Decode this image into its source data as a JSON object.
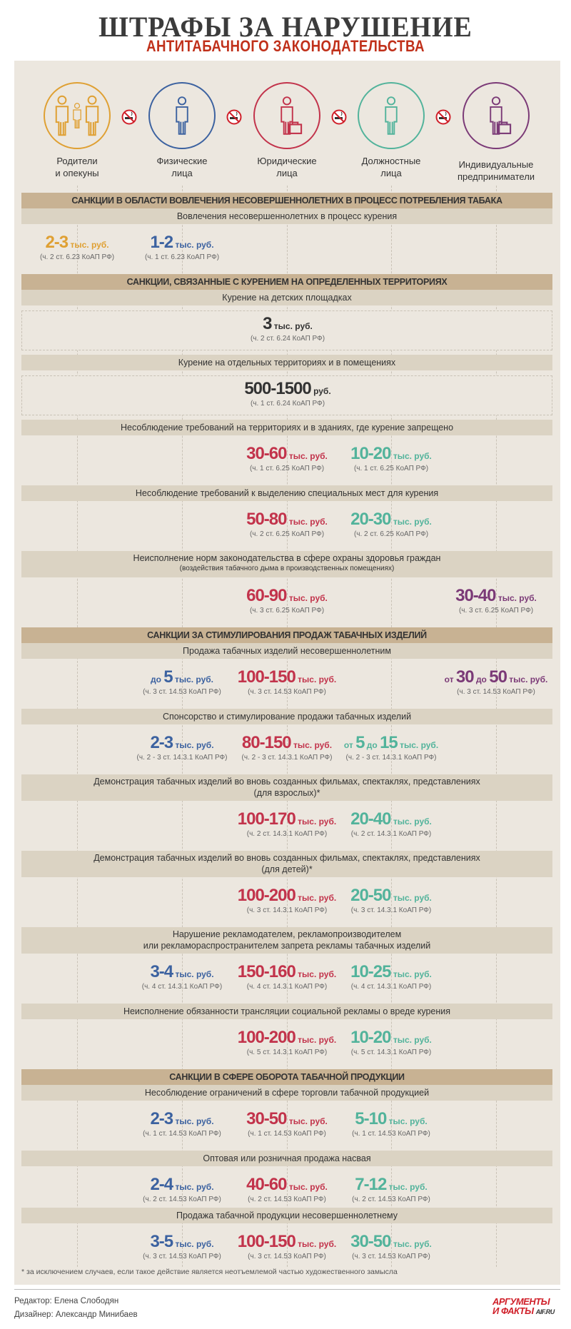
{
  "header": {
    "title": "ШТРАФЫ ЗА НАРУШЕНИЕ",
    "subtitle": "АНТИТАБАЧНОГО ЗАКОНОДАТЕЛЬСТВА"
  },
  "colors": {
    "col0": "#dfa033",
    "col1": "#3c62a0",
    "col2": "#c2334b",
    "col3": "#52b39b",
    "col4": "#7b3a77",
    "neutral": "#333333",
    "section_bar": "#c8b293",
    "sub_bar": "#dbd3c3",
    "panel": "#ece7df",
    "title_red": "#c0301a"
  },
  "categories": [
    {
      "icon": "family-icon",
      "line1": "Родители",
      "line2": "и опекуны"
    },
    {
      "icon": "person-icon",
      "line1": "Физические",
      "line2": "лица"
    },
    {
      "icon": "businessman-briefcase-icon",
      "line1": "Юридические",
      "line2": "лица"
    },
    {
      "icon": "official-icon",
      "line1": "Должностные",
      "line2": "лица"
    },
    {
      "icon": "entrepreneur-briefcase-icon",
      "line1": "Индивидуальные",
      "line2": "предприниматели"
    }
  ],
  "rows": [
    {
      "type": "sec",
      "text": "САНКЦИИ В ОБЛАСТИ ВОВЛЕЧЕНИЯ НЕСОВЕРШЕННОЛЕТНИХ В ПРОЦЕСС ПОТРЕБЛЕНИЯ ТАБАКА"
    },
    {
      "type": "sub",
      "text": "Вовлечения несовершеннолетних в процесс курения"
    },
    {
      "type": "fines",
      "fines": [
        {
          "col": 0,
          "parts": [
            {
              "t": "2-3",
              "b": true
            },
            {
              "t": " тыс. руб."
            }
          ],
          "cite": "(ч. 2 ст. 6.23 КоАП РФ)"
        },
        {
          "col": 1,
          "parts": [
            {
              "t": "1-2",
              "b": true
            },
            {
              "t": " тыс. руб."
            }
          ],
          "cite": "(ч. 1 ст. 6.23 КоАП РФ)"
        }
      ]
    },
    {
      "type": "sec",
      "text": "САНКЦИИ, СВЯЗАННЫЕ С КУРЕНИЕМ НА ОПРЕДЕЛЕННЫХ ТЕРРИТОРИЯХ"
    },
    {
      "type": "sub",
      "text": "Курение на детских площадках"
    },
    {
      "type": "box",
      "fines": [
        {
          "col": "all",
          "parts": [
            {
              "t": "3",
              "b": true
            },
            {
              "t": " тыс. руб."
            }
          ],
          "cite": "(ч. 2 ст. 6.24 КоАП РФ)"
        }
      ]
    },
    {
      "type": "sub",
      "text": "Курение на отдельных территориях и в помещениях"
    },
    {
      "type": "box",
      "fines": [
        {
          "col": "all",
          "parts": [
            {
              "t": "500-1500",
              "b": true
            },
            {
              "t": " руб."
            }
          ],
          "cite": "(ч. 1 ст. 6.24 КоАП РФ)"
        }
      ]
    },
    {
      "type": "sub",
      "text": "Несоблюдение требований на территориях и в зданиях, где курение запрещено"
    },
    {
      "type": "fines",
      "fines": [
        {
          "col": 2,
          "parts": [
            {
              "t": "30-60",
              "b": true
            },
            {
              "t": " тыс. руб."
            }
          ],
          "cite": "(ч. 1 ст. 6.25 КоАП РФ)"
        },
        {
          "col": 3,
          "parts": [
            {
              "t": "10-20",
              "b": true
            },
            {
              "t": " тыс. руб."
            }
          ],
          "cite": "(ч. 1 ст. 6.25 КоАП РФ)"
        }
      ]
    },
    {
      "type": "sub",
      "text": "Несоблюдение требований к выделению специальных мест для курения"
    },
    {
      "type": "fines",
      "fines": [
        {
          "col": 2,
          "parts": [
            {
              "t": "50-80",
              "b": true
            },
            {
              "t": " тыс. руб."
            }
          ],
          "cite": "(ч. 2 ст. 6.25 КоАП РФ)"
        },
        {
          "col": 3,
          "parts": [
            {
              "t": "20-30",
              "b": true
            },
            {
              "t": " тыс. руб."
            }
          ],
          "cite": "(ч. 2 ст. 6.25 КоАП РФ)"
        }
      ]
    },
    {
      "type": "sub2",
      "text": "Неисполнение норм законодательства в сфере охраны здоровья граждан",
      "note": "(воздействия табачного дыма в производственных помещениях)"
    },
    {
      "type": "fines",
      "fines": [
        {
          "col": 2,
          "parts": [
            {
              "t": "60-90",
              "b": true
            },
            {
              "t": " тыс. руб."
            }
          ],
          "cite": "(ч. 3 ст. 6.25 КоАП РФ)"
        },
        {
          "col": 4,
          "parts": [
            {
              "t": "30-40",
              "b": true
            },
            {
              "t": " тыс. руб."
            }
          ],
          "cite": "(ч. 3 ст. 6.25 КоАП РФ)"
        }
      ]
    },
    {
      "type": "sec",
      "text": "САНКЦИИ ЗА СТИМУЛИРОВАНИЯ ПРОДАЖ ТАБАЧНЫХ ИЗДЕЛИЙ"
    },
    {
      "type": "sub",
      "text": "Продажа табачных изделий несовершеннолетним"
    },
    {
      "type": "fines",
      "fines": [
        {
          "col": 1,
          "parts": [
            {
              "t": "до "
            },
            {
              "t": "5",
              "b": true
            },
            {
              "t": " тыс. руб."
            }
          ],
          "cite": "(ч. 3 ст. 14.53 КоАП РФ)"
        },
        {
          "col": 2,
          "parts": [
            {
              "t": "100-150",
              "b": true
            },
            {
              "t": " тыс. руб."
            }
          ],
          "cite": "(ч. 3 ст. 14.53 КоАП РФ)"
        },
        {
          "col": 4,
          "parts": [
            {
              "t": "от "
            },
            {
              "t": "30",
              "b": true
            },
            {
              "t": " до "
            },
            {
              "t": "50",
              "b": true
            },
            {
              "t": " тыс. руб."
            }
          ],
          "cite": "(ч. 3 ст. 14.53 КоАП РФ)"
        }
      ]
    },
    {
      "type": "sub",
      "text": "Спонсорство и стимулирование продажи табачных изделий"
    },
    {
      "type": "fines",
      "fines": [
        {
          "col": 1,
          "parts": [
            {
              "t": "2-3",
              "b": true
            },
            {
              "t": " тыс. руб."
            }
          ],
          "cite": "(ч. 2 - 3 ст. 14.3.1 КоАП РФ)"
        },
        {
          "col": 2,
          "parts": [
            {
              "t": "80-150",
              "b": true
            },
            {
              "t": " тыс. руб."
            }
          ],
          "cite": "(ч. 2 - 3 ст. 14.3.1 КоАП РФ)"
        },
        {
          "col": 3,
          "parts": [
            {
              "t": "от "
            },
            {
              "t": "5",
              "b": true
            },
            {
              "t": " до "
            },
            {
              "t": "15",
              "b": true
            },
            {
              "t": " тыс. руб."
            }
          ],
          "cite": "(ч. 2 - 3 ст. 14.3.1 КоАП РФ)"
        }
      ]
    },
    {
      "type": "sub2",
      "text": "Демонстрация табачных изделий во вновь созданных фильмах, спектаклях, представлениях",
      "text2": "(для взрослых)*"
    },
    {
      "type": "fines",
      "fines": [
        {
          "col": 2,
          "parts": [
            {
              "t": "100-170",
              "b": true
            },
            {
              "t": " тыс. руб."
            }
          ],
          "cite": "(ч. 2 ст. 14.3.1 КоАП РФ)"
        },
        {
          "col": 3,
          "parts": [
            {
              "t": "20-40",
              "b": true
            },
            {
              "t": " тыс. руб."
            }
          ],
          "cite": "(ч. 2 ст. 14.3.1 КоАП РФ)"
        }
      ]
    },
    {
      "type": "sub2",
      "text": "Демонстрация табачных изделий во вновь созданных фильмах, спектаклях, представлениях",
      "text2": "(для детей)*"
    },
    {
      "type": "fines",
      "fines": [
        {
          "col": 2,
          "parts": [
            {
              "t": "100-200",
              "b": true
            },
            {
              "t": " тыс. руб."
            }
          ],
          "cite": "(ч. 3 ст. 14.3.1 КоАП РФ)"
        },
        {
          "col": 3,
          "parts": [
            {
              "t": "20-50",
              "b": true
            },
            {
              "t": " тыс. руб."
            }
          ],
          "cite": "(ч. 3 ст. 14.3.1 КоАП РФ)"
        }
      ]
    },
    {
      "type": "sub2",
      "text": "Нарушение рекламодателем, рекламопроизводителем",
      "text2": "или рекламораспространителем запрета рекламы табачных изделий"
    },
    {
      "type": "fines",
      "fines": [
        {
          "col": 1,
          "parts": [
            {
              "t": "3-4",
              "b": true
            },
            {
              "t": " тыс. руб."
            }
          ],
          "cite": "(ч. 4 ст. 14.3.1 КоАП РФ)"
        },
        {
          "col": 2,
          "parts": [
            {
              "t": "150-160",
              "b": true
            },
            {
              "t": " тыс. руб."
            }
          ],
          "cite": "(ч. 4 ст. 14.3.1 КоАП РФ)"
        },
        {
          "col": 3,
          "parts": [
            {
              "t": "10-25",
              "b": true
            },
            {
              "t": " тыс. руб."
            }
          ],
          "cite": "(ч. 4 ст. 14.3.1 КоАП РФ)"
        }
      ]
    },
    {
      "type": "sub",
      "text": "Неисполнение обязанности трансляции социальной рекламы о вреде курения"
    },
    {
      "type": "fines",
      "fines": [
        {
          "col": 2,
          "parts": [
            {
              "t": "100-200",
              "b": true
            },
            {
              "t": " тыс. руб."
            }
          ],
          "cite": "(ч. 5 ст. 14.3.1 КоАП РФ)"
        },
        {
          "col": 3,
          "parts": [
            {
              "t": "10-20",
              "b": true
            },
            {
              "t": " тыс. руб."
            }
          ],
          "cite": "(ч. 5 ст. 14.3.1 КоАП РФ)"
        }
      ]
    },
    {
      "type": "sec",
      "text": "САНКЦИИ В СФЕРЕ ОБОРОТА ТАБАЧНОЙ ПРОДУКЦИИ"
    },
    {
      "type": "sub",
      "text": "Несоблюдение ограничений в сфере торговли табачной продукцией"
    },
    {
      "type": "fines",
      "fines": [
        {
          "col": 1,
          "parts": [
            {
              "t": "2-3",
              "b": true
            },
            {
              "t": " тыс. руб."
            }
          ],
          "cite": "(ч. 1 ст. 14.53 КоАП РФ)"
        },
        {
          "col": 2,
          "parts": [
            {
              "t": "30-50",
              "b": true
            },
            {
              "t": " тыс. руб."
            }
          ],
          "cite": "(ч. 1 ст. 14.53 КоАП РФ)"
        },
        {
          "col": 3,
          "parts": [
            {
              "t": "5-10",
              "b": true
            },
            {
              "t": " тыс. руб."
            }
          ],
          "cite": "(ч. 1 ст. 14.53 КоАП РФ)"
        }
      ]
    },
    {
      "type": "sub",
      "text": "Оптовая или розничная продажа насвая"
    },
    {
      "type": "fines",
      "fines": [
        {
          "col": 1,
          "parts": [
            {
              "t": "2-4",
              "b": true
            },
            {
              "t": " тыс. руб."
            }
          ],
          "cite": "(ч. 2 ст. 14.53 КоАП РФ)"
        },
        {
          "col": 2,
          "parts": [
            {
              "t": "40-60",
              "b": true
            },
            {
              "t": " тыс. руб."
            }
          ],
          "cite": "(ч. 2 ст. 14.53 КоАП РФ)"
        },
        {
          "col": 3,
          "parts": [
            {
              "t": "7-12",
              "b": true
            },
            {
              "t": " тыс. руб."
            }
          ],
          "cite": "(ч. 2 ст. 14.53 КоАП РФ)"
        }
      ]
    },
    {
      "type": "sub",
      "text": "Продажа табачной продукции несовершеннолетнему"
    },
    {
      "type": "fines",
      "fines": [
        {
          "col": 1,
          "parts": [
            {
              "t": "3-5",
              "b": true
            },
            {
              "t": " тыс. руб."
            }
          ],
          "cite": "(ч. 3 ст. 14.53 КоАП РФ)"
        },
        {
          "col": 2,
          "parts": [
            {
              "t": "100-150",
              "b": true
            },
            {
              "t": " тыс. руб."
            }
          ],
          "cite": "(ч. 3 ст. 14.53 КоАП РФ)"
        },
        {
          "col": 3,
          "parts": [
            {
              "t": "30-50",
              "b": true
            },
            {
              "t": " тыс. руб."
            }
          ],
          "cite": "(ч. 3 ст. 14.53 КоАП РФ)"
        }
      ]
    }
  ],
  "footnote": "* за исключением случаев, если такое действие является неотъемлемой частью художественного замысла",
  "footer": {
    "editor": "Редактор: Елена Слободян",
    "designer": "Дизайнер: Александр Минибаев",
    "logo_line1": "АРГУМЕНТЫ",
    "logo_line2": "И ФАКТЫ",
    "logo_site": "AIF.RU"
  }
}
